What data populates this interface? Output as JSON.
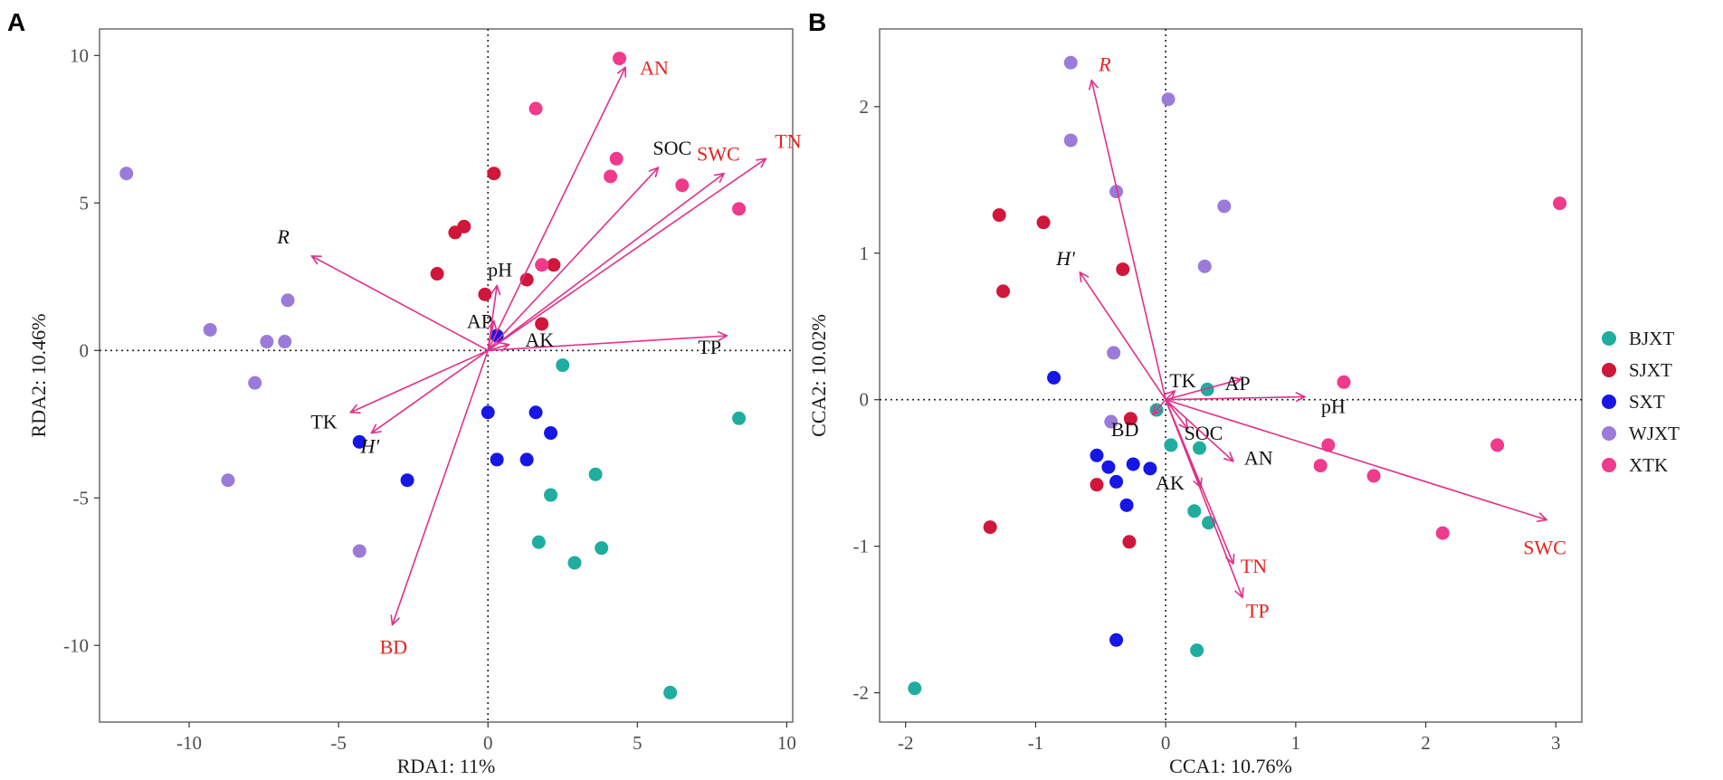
{
  "colors": {
    "vector": "#E0308A",
    "red_label": "#E8221F",
    "black_label": "#111111",
    "frame": "#555555",
    "grid_zero": "#222222"
  },
  "legend": {
    "items": [
      {
        "key": "BJXT",
        "label": "BJXT",
        "color": "#1FADA0"
      },
      {
        "key": "SJXT",
        "label": "SJXT",
        "color": "#D0163A"
      },
      {
        "key": "SXT",
        "label": "SXT",
        "color": "#1616E6"
      },
      {
        "key": "WJXT",
        "label": "WJXT",
        "color": "#9B7BD9"
      },
      {
        "key": "XTK",
        "label": "XTK",
        "color": "#F03A8C"
      }
    ]
  },
  "chart_data": [
    {
      "panel": "A",
      "type": "scatter",
      "method": "RDA biplot",
      "xlabel": "RDA1:   11%",
      "ylabel": "RDA2: 10.46%",
      "xlim": [
        -13,
        10.2
      ],
      "ylim": [
        -12.6,
        10.9
      ],
      "xticks": [
        -10,
        -5,
        0,
        5,
        10
      ],
      "yticks": [
        -10,
        -5,
        0,
        5,
        10
      ],
      "xtick_labels": [
        "-10",
        "-5",
        "0",
        "5",
        "10"
      ],
      "ytick_labels": [
        "-10",
        "-5",
        "0",
        "5",
        "10"
      ],
      "points": {
        "BJXT": [
          [
            2.5,
            -0.5
          ],
          [
            8.4,
            -2.3
          ],
          [
            3.6,
            -4.2
          ],
          [
            2.1,
            -4.9
          ],
          [
            1.7,
            -6.5
          ],
          [
            3.8,
            -6.7
          ],
          [
            2.9,
            -7.2
          ],
          [
            6.1,
            -11.6
          ]
        ],
        "SJXT": [
          [
            0.2,
            6.0
          ],
          [
            -1.1,
            4.0
          ],
          [
            -0.8,
            4.2
          ],
          [
            -1.7,
            2.6
          ],
          [
            -0.1,
            1.9
          ],
          [
            1.3,
            2.4
          ],
          [
            2.2,
            2.9
          ],
          [
            1.8,
            0.9
          ]
        ],
        "SXT": [
          [
            0.3,
            0.5
          ],
          [
            0.0,
            -2.1
          ],
          [
            1.6,
            -2.1
          ],
          [
            2.1,
            -2.8
          ],
          [
            0.3,
            -3.7
          ],
          [
            1.3,
            -3.7
          ],
          [
            -4.3,
            -3.1
          ],
          [
            -2.7,
            -4.4
          ]
        ],
        "WJXT": [
          [
            -12.1,
            6.0
          ],
          [
            -6.7,
            1.7
          ],
          [
            -9.3,
            0.7
          ],
          [
            -7.4,
            0.3
          ],
          [
            -6.8,
            0.3
          ],
          [
            -7.8,
            -1.1
          ],
          [
            -8.7,
            -4.4
          ],
          [
            -4.3,
            -6.8
          ]
        ],
        "XTK": [
          [
            4.4,
            9.9
          ],
          [
            1.6,
            8.2
          ],
          [
            4.3,
            6.5
          ],
          [
            4.1,
            5.9
          ],
          [
            6.5,
            5.6
          ],
          [
            8.4,
            4.8
          ],
          [
            1.8,
            2.9
          ]
        ]
      },
      "vectors": [
        {
          "name": "AN",
          "x": 4.6,
          "y": 9.6,
          "label_color": "red",
          "italic": false
        },
        {
          "name": "SOC",
          "x": 5.7,
          "y": 6.2,
          "label_color": "black",
          "italic": false
        },
        {
          "name": "SWC",
          "x": 7.9,
          "y": 6.0,
          "label_color": "red",
          "italic": false
        },
        {
          "name": "TN",
          "x": 9.3,
          "y": 6.5,
          "label_color": "red",
          "italic": false
        },
        {
          "name": "TP",
          "x": 8.0,
          "y": 0.5,
          "label_color": "black",
          "italic": false
        },
        {
          "name": "R",
          "x": -5.9,
          "y": 3.2,
          "label_color": "black",
          "italic": true
        },
        {
          "name": "pH",
          "x": 0.3,
          "y": 2.2,
          "label_color": "black",
          "italic": false
        },
        {
          "name": "AP",
          "x": 0.2,
          "y": 1.0,
          "label_color": "black",
          "italic": false
        },
        {
          "name": "AK",
          "x": 0.7,
          "y": 0.2,
          "label_color": "black",
          "italic": false
        },
        {
          "name": "TK",
          "x": -4.6,
          "y": -2.1,
          "label_color": "black",
          "italic": false
        },
        {
          "name": "H'",
          "x": -3.9,
          "y": -2.8,
          "label_color": "black",
          "italic": true
        },
        {
          "name": "BD",
          "x": -3.2,
          "y": -9.3,
          "label_color": "red",
          "italic": false
        }
      ]
    },
    {
      "panel": "B",
      "type": "scatter",
      "method": "CCA biplot",
      "xlabel": "CCA1: 10.76%",
      "ylabel": "CCA2: 10.02%",
      "xlim": [
        -2.2,
        3.2
      ],
      "ylim": [
        -2.2,
        2.53
      ],
      "xticks": [
        -2,
        -1,
        0,
        1,
        2,
        3
      ],
      "yticks": [
        -2,
        -1,
        0,
        1,
        2
      ],
      "xtick_labels": [
        "-2",
        "-1",
        "0",
        "1",
        "2",
        "3"
      ],
      "ytick_labels": [
        "-2",
        "-1",
        "0",
        "1",
        "2"
      ],
      "points": {
        "BJXT": [
          [
            -1.93,
            -1.97
          ],
          [
            0.24,
            -1.71
          ],
          [
            0.32,
            0.07
          ],
          [
            -0.07,
            -0.07
          ],
          [
            0.04,
            -0.31
          ],
          [
            0.26,
            -0.33
          ],
          [
            0.22,
            -0.76
          ],
          [
            0.33,
            -0.84
          ]
        ],
        "SJXT": [
          [
            -1.28,
            1.26
          ],
          [
            -0.94,
            1.21
          ],
          [
            -1.25,
            0.74
          ],
          [
            -0.33,
            0.89
          ],
          [
            -0.27,
            -0.13
          ],
          [
            -0.53,
            -0.58
          ],
          [
            -1.35,
            -0.87
          ],
          [
            -0.28,
            -0.97
          ]
        ],
        "SXT": [
          [
            -0.86,
            0.15
          ],
          [
            -0.53,
            -0.38
          ],
          [
            -0.44,
            -0.46
          ],
          [
            -0.25,
            -0.44
          ],
          [
            -0.12,
            -0.47
          ],
          [
            -0.38,
            -0.56
          ],
          [
            -0.3,
            -0.72
          ],
          [
            -0.38,
            -1.64
          ]
        ],
        "WJXT": [
          [
            -0.73,
            2.3
          ],
          [
            0.02,
            2.05
          ],
          [
            -0.73,
            1.77
          ],
          [
            -0.38,
            1.42
          ],
          [
            0.45,
            1.32
          ],
          [
            0.3,
            0.91
          ],
          [
            -0.4,
            0.32
          ],
          [
            -0.42,
            -0.15
          ]
        ],
        "XTK": [
          [
            3.03,
            1.34
          ],
          [
            1.37,
            0.12
          ],
          [
            1.25,
            -0.31
          ],
          [
            2.55,
            -0.31
          ],
          [
            1.19,
            -0.45
          ],
          [
            1.6,
            -0.52
          ],
          [
            2.13,
            -0.91
          ]
        ]
      },
      "vectors": [
        {
          "name": "R",
          "x": -0.57,
          "y": 2.18,
          "label_color": "red",
          "italic": true
        },
        {
          "name": "H'",
          "x": -0.66,
          "y": 0.87,
          "label_color": "black",
          "italic": true
        },
        {
          "name": "TK",
          "x": 0.07,
          "y": 0.06,
          "label_color": "black",
          "italic": false
        },
        {
          "name": "AP",
          "x": 0.58,
          "y": 0.14,
          "label_color": "black",
          "italic": false
        },
        {
          "name": "pH",
          "x": 1.07,
          "y": 0.02,
          "label_color": "black",
          "italic": false
        },
        {
          "name": "BD",
          "x": -0.1,
          "y": -0.1,
          "label_color": "black",
          "italic": false
        },
        {
          "name": "SOC",
          "x": 0.17,
          "y": -0.2,
          "label_color": "black",
          "italic": false
        },
        {
          "name": "AN",
          "x": 0.52,
          "y": -0.42,
          "label_color": "black",
          "italic": false
        },
        {
          "name": "AK",
          "x": 0.27,
          "y": -0.6,
          "label_color": "black",
          "italic": false
        },
        {
          "name": "TN",
          "x": 0.52,
          "y": -1.12,
          "label_color": "red",
          "italic": false
        },
        {
          "name": "TP",
          "x": 0.59,
          "y": -1.35,
          "label_color": "red",
          "italic": false
        },
        {
          "name": "SWC",
          "x": 2.93,
          "y": -0.82,
          "label_color": "red",
          "italic": false
        }
      ]
    }
  ]
}
